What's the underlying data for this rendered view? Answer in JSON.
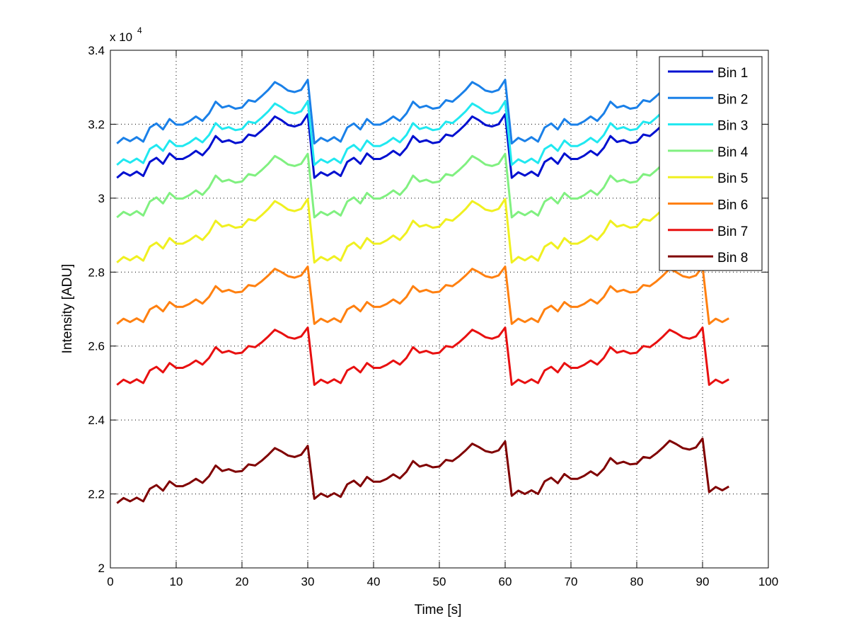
{
  "chart_data": {
    "type": "line",
    "title": "",
    "xlabel": "Time [s]",
    "ylabel": "Intensity [ADU]",
    "y_exponent_base": "x 10",
    "y_exponent_power": "4",
    "xlim": [
      0,
      100
    ],
    "ylim": [
      20000,
      34000
    ],
    "xticks": [
      0,
      10,
      20,
      30,
      40,
      50,
      60,
      70,
      80,
      90,
      100
    ],
    "xtick_labels": [
      "0",
      "10",
      "20",
      "30",
      "40",
      "50",
      "60",
      "70",
      "80",
      "90",
      "100"
    ],
    "yticks": [
      20000,
      22000,
      24000,
      26000,
      28000,
      30000,
      32000,
      34000
    ],
    "ytick_labels": [
      "2",
      "2.2",
      "2.4",
      "2.6",
      "2.8",
      "3",
      "3.2",
      "3.4"
    ],
    "grid": true,
    "legend_placement": "top-right",
    "x_start": 1,
    "x_step": 1,
    "series": [
      {
        "name": "Bin 1",
        "color": "#0010d0",
        "values": [
          30550,
          30700,
          30610,
          30720,
          30600,
          30980,
          31090,
          30930,
          31210,
          31060,
          31060,
          31150,
          31280,
          31160,
          31360,
          31680,
          31520,
          31570,
          31490,
          31520,
          31720,
          31680,
          31830,
          32000,
          32210,
          32110,
          31980,
          31940,
          32000,
          32270,
          30550,
          30700,
          30610,
          30720,
          30600,
          30980,
          31090,
          30930,
          31210,
          31060,
          31060,
          31150,
          31280,
          31160,
          31360,
          31680,
          31520,
          31570,
          31490,
          31520,
          31720,
          31680,
          31830,
          32000,
          32210,
          32110,
          31980,
          31940,
          32000,
          32270,
          30550,
          30700,
          30610,
          30720,
          30600,
          30980,
          31090,
          30930,
          31210,
          31060,
          31060,
          31150,
          31280,
          31160,
          31360,
          31680,
          31520,
          31570,
          31490,
          31520,
          31720,
          31680,
          31830,
          32000,
          32210,
          32110,
          31980,
          31940,
          32000,
          32270,
          30550,
          30700,
          30610,
          30720
        ]
      },
      {
        "name": "Bin 2",
        "color": "#1a80e8",
        "values": [
          31480,
          31630,
          31540,
          31650,
          31530,
          31910,
          32020,
          31860,
          32140,
          31990,
          31990,
          32080,
          32210,
          32090,
          32290,
          32610,
          32450,
          32500,
          32420,
          32450,
          32650,
          32610,
          32760,
          32930,
          33140,
          33040,
          32910,
          32870,
          32930,
          33200,
          31480,
          31630,
          31540,
          31650,
          31530,
          31910,
          32020,
          31860,
          32140,
          31990,
          31990,
          32080,
          32210,
          32090,
          32290,
          32610,
          32450,
          32500,
          32420,
          32450,
          32650,
          32610,
          32760,
          32930,
          33140,
          33040,
          32910,
          32870,
          32930,
          33200,
          31480,
          31630,
          31540,
          31650,
          31530,
          31910,
          32020,
          31860,
          32140,
          31990,
          31990,
          32080,
          32210,
          32090,
          32290,
          32610,
          32450,
          32500,
          32420,
          32450,
          32650,
          32610,
          32760,
          32930,
          33140,
          33040,
          32910,
          32870,
          32930,
          33200,
          31480,
          31630,
          31540,
          31650
        ]
      },
      {
        "name": "Bin 3",
        "color": "#20e8f0",
        "values": [
          30900,
          31050,
          30960,
          31070,
          30950,
          31330,
          31440,
          31280,
          31560,
          31410,
          31410,
          31500,
          31630,
          31510,
          31710,
          32030,
          31870,
          31920,
          31840,
          31870,
          32070,
          32030,
          32180,
          32350,
          32560,
          32460,
          32330,
          32290,
          32350,
          32620,
          30900,
          31050,
          30960,
          31070,
          30950,
          31330,
          31440,
          31280,
          31560,
          31410,
          31410,
          31500,
          31630,
          31510,
          31710,
          32030,
          31870,
          31920,
          31840,
          31870,
          32070,
          32030,
          32180,
          32350,
          32560,
          32460,
          32330,
          32290,
          32350,
          32620,
          30900,
          31050,
          30960,
          31070,
          30950,
          31330,
          31440,
          31280,
          31560,
          31410,
          31410,
          31500,
          31630,
          31510,
          31710,
          32030,
          31870,
          31920,
          31840,
          31870,
          32070,
          32030,
          32180,
          32350,
          32560,
          32460,
          32330,
          32290,
          32350,
          32620,
          30900,
          31050,
          30960,
          31070
        ]
      },
      {
        "name": "Bin 4",
        "color": "#80f080",
        "values": [
          29480,
          29630,
          29540,
          29650,
          29530,
          29910,
          30020,
          29860,
          30140,
          29990,
          29990,
          30080,
          30210,
          30090,
          30290,
          30610,
          30450,
          30500,
          30420,
          30450,
          30650,
          30610,
          30760,
          30930,
          31140,
          31040,
          30910,
          30870,
          30930,
          31200,
          29480,
          29630,
          29540,
          29650,
          29530,
          29910,
          30020,
          29860,
          30140,
          29990,
          29990,
          30080,
          30210,
          30090,
          30290,
          30610,
          30450,
          30500,
          30420,
          30450,
          30650,
          30610,
          30760,
          30930,
          31140,
          31040,
          30910,
          30870,
          30930,
          31200,
          29480,
          29630,
          29540,
          29650,
          29530,
          29910,
          30020,
          29860,
          30140,
          29990,
          29990,
          30080,
          30210,
          30090,
          30290,
          30610,
          30450,
          30500,
          30420,
          30450,
          30650,
          30610,
          30760,
          30930,
          31140,
          31040,
          30910,
          30870,
          30930,
          31200,
          29480,
          29630,
          29540,
          29650
        ]
      },
      {
        "name": "Bin 5",
        "color": "#f0f020",
        "values": [
          28260,
          28410,
          28320,
          28430,
          28310,
          28690,
          28800,
          28640,
          28920,
          28770,
          28770,
          28860,
          28990,
          28870,
          29070,
          29390,
          29230,
          29280,
          29200,
          29230,
          29430,
          29390,
          29540,
          29710,
          29920,
          29820,
          29690,
          29650,
          29710,
          29980,
          28260,
          28410,
          28320,
          28430,
          28310,
          28690,
          28800,
          28640,
          28920,
          28770,
          28770,
          28860,
          28990,
          28870,
          29070,
          29390,
          29230,
          29280,
          29200,
          29230,
          29430,
          29390,
          29540,
          29710,
          29920,
          29820,
          29690,
          29650,
          29710,
          29980,
          28260,
          28410,
          28320,
          28430,
          28310,
          28690,
          28800,
          28640,
          28920,
          28770,
          28770,
          28860,
          28990,
          28870,
          29070,
          29390,
          29230,
          29280,
          29200,
          29230,
          29430,
          29390,
          29540,
          29710,
          29920,
          29820,
          29690,
          29650,
          29710,
          29980,
          28260,
          28410,
          28320,
          28430
        ]
      },
      {
        "name": "Bin 6",
        "color": "#ff8010",
        "values": [
          26600,
          26740,
          26650,
          26750,
          26650,
          26990,
          27090,
          26940,
          27190,
          27060,
          27060,
          27140,
          27260,
          27150,
          27330,
          27620,
          27470,
          27520,
          27450,
          27470,
          27650,
          27620,
          27750,
          27910,
          28090,
          28000,
          27890,
          27850,
          27910,
          28150,
          26600,
          26740,
          26650,
          26750,
          26650,
          26990,
          27090,
          26940,
          27190,
          27060,
          27060,
          27140,
          27260,
          27150,
          27330,
          27620,
          27470,
          27520,
          27450,
          27470,
          27650,
          27620,
          27750,
          27910,
          28090,
          28000,
          27890,
          27850,
          27910,
          28150,
          26600,
          26740,
          26650,
          26750,
          26650,
          26990,
          27090,
          26940,
          27190,
          27060,
          27060,
          27140,
          27260,
          27150,
          27330,
          27620,
          27470,
          27520,
          27450,
          27470,
          27650,
          27620,
          27750,
          27910,
          28090,
          28000,
          27890,
          27850,
          27910,
          28150,
          26600,
          26740,
          26650,
          26750
        ]
      },
      {
        "name": "Bin 7",
        "color": "#e81010",
        "values": [
          24950,
          25090,
          25000,
          25100,
          25000,
          25340,
          25440,
          25290,
          25540,
          25410,
          25410,
          25490,
          25610,
          25500,
          25680,
          25970,
          25820,
          25870,
          25800,
          25820,
          26000,
          25970,
          26100,
          26260,
          26440,
          26350,
          26240,
          26200,
          26260,
          26500,
          24950,
          25090,
          25000,
          25100,
          25000,
          25340,
          25440,
          25290,
          25540,
          25410,
          25410,
          25490,
          25610,
          25500,
          25680,
          25970,
          25820,
          25870,
          25800,
          25820,
          26000,
          25970,
          26100,
          26260,
          26440,
          26350,
          26240,
          26200,
          26260,
          26500,
          24950,
          25090,
          25000,
          25100,
          25000,
          25340,
          25440,
          25290,
          25540,
          25410,
          25410,
          25490,
          25610,
          25500,
          25680,
          25970,
          25820,
          25870,
          25800,
          25820,
          26000,
          25970,
          26100,
          26260,
          26440,
          26350,
          26240,
          26200,
          26260,
          26500,
          24950,
          25090,
          25000,
          25100
        ]
      },
      {
        "name": "Bin 8",
        "color": "#800000",
        "values": [
          21750,
          21890,
          21800,
          21900,
          21800,
          22140,
          22240,
          22090,
          22340,
          22210,
          22210,
          22290,
          22410,
          22300,
          22480,
          22770,
          22620,
          22670,
          22600,
          22620,
          22800,
          22770,
          22900,
          23060,
          23240,
          23150,
          23040,
          23000,
          23060,
          23300,
          21870,
          22010,
          21920,
          22020,
          21920,
          22260,
          22360,
          22210,
          22460,
          22330,
          22330,
          22410,
          22530,
          22420,
          22600,
          22890,
          22740,
          22790,
          22720,
          22740,
          22920,
          22890,
          23020,
          23180,
          23360,
          23270,
          23160,
          23120,
          23180,
          23420,
          21950,
          22090,
          22000,
          22100,
          22000,
          22340,
          22440,
          22290,
          22540,
          22410,
          22410,
          22490,
          22610,
          22500,
          22680,
          22970,
          22820,
          22870,
          22800,
          22820,
          23000,
          22970,
          23100,
          23260,
          23440,
          23350,
          23240,
          23200,
          23260,
          23500,
          22050,
          22190,
          22100,
          22200
        ]
      }
    ]
  }
}
